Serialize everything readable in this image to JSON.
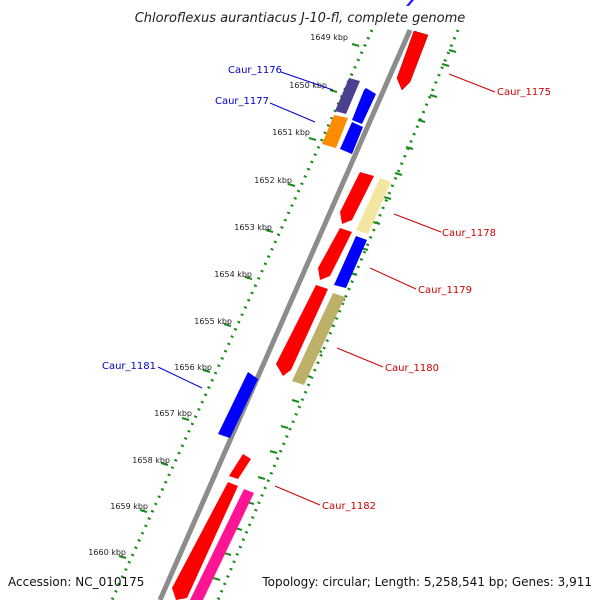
{
  "title": "Chloroflexus aurantiacus J-10-fl, complete genome",
  "footer": {
    "accession": "Accession: NC_010175",
    "topology": "Topology: circular; Length: 5,258,541 bp; Genes: 3,911"
  },
  "ticks": [
    "1649 kbp",
    "1650 kbp",
    "1651 kbp",
    "1652 kbp",
    "1653 kbp",
    "1654 kbp",
    "1655 kbp",
    "1656 kbp",
    "1657 kbp",
    "1658 kbp",
    "1659 kbp",
    "1660 kbp"
  ],
  "gene_labels": [
    {
      "text": "Caur_1175",
      "color": "#cc0000"
    },
    {
      "text": "Caur_1176",
      "color": "#0000cc"
    },
    {
      "text": "Caur_1177",
      "color": "#0000cc"
    },
    {
      "text": "Caur_1178",
      "color": "#cc0000"
    },
    {
      "text": "Caur_1179",
      "color": "#cc0000"
    },
    {
      "text": "Caur_1180",
      "color": "#cc0000"
    },
    {
      "text": "Caur_1181",
      "color": "#0000cc"
    },
    {
      "text": "Caur_1182",
      "color": "#cc0000"
    }
  ],
  "colors": {
    "forward_cds": "#ff0000",
    "reverse_cds": "#0000ff",
    "backbone": "#8c8c8c",
    "tick_dots": "#1a8c1a"
  }
}
